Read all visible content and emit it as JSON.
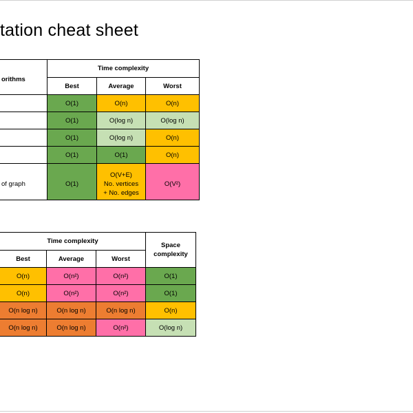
{
  "slide": {
    "title": "tation cheat sheet"
  },
  "table1": {
    "header_left": "orithms",
    "header_time": "Time complexity",
    "subheaders": [
      "Best",
      "Average",
      "Worst"
    ],
    "rows": [
      {
        "label": "",
        "best": "O(1)",
        "average": "O(n)",
        "worst": "O(n)"
      },
      {
        "label": "",
        "best": "O(1)",
        "average": "O(log n)",
        "worst": "O(log n)"
      },
      {
        "label": "",
        "best": "O(1)",
        "average": "O(log n)",
        "worst": "O(n)"
      },
      {
        "label": "",
        "best": "O(1)",
        "average": "O(1)",
        "worst": "O(n)"
      },
      {
        "label": "of graph",
        "best": "O(1)",
        "average_line1": "O(V+E)",
        "average_line2": "No. vertices",
        "average_line3": "+ No. edges",
        "worst": "O(V²)"
      }
    ]
  },
  "table2": {
    "header_time": "Time complexity",
    "header_space": "Space complexity",
    "subheaders": [
      "Best",
      "Average",
      "Worst"
    ],
    "rows": [
      {
        "best": "O(n)",
        "average": "O(n²)",
        "worst": "O(n²)",
        "space": "O(1)"
      },
      {
        "best": "O(n)",
        "average": "O(n²)",
        "worst": "O(n²)",
        "space": "O(1)"
      },
      {
        "best": "O(n log n)",
        "average": "O(n log n)",
        "worst": "O(n log n)",
        "space": "O(n)"
      },
      {
        "best": "O(n log n)",
        "average": "O(n log n)",
        "worst": "O(n²)",
        "space": "O(log n)"
      }
    ]
  },
  "colors": {
    "green": "#6aa84f",
    "light_green": "#c6e0b4",
    "orange": "#ffc000",
    "pink": "#ff6fa8",
    "deep_orange": "#ed7d31"
  }
}
